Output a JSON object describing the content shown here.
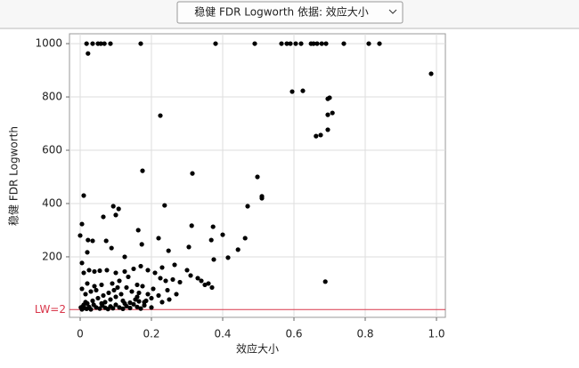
{
  "chart_data": {
    "type": "scatter",
    "title": "稳健 FDR Logworth 依据: 效应大小",
    "x_label": "效应大小",
    "y_label": "稳健 FDR Logworth",
    "color": "#000000",
    "grid": true,
    "xlim": [
      -0.03,
      1.025
    ],
    "ylim": [
      -27,
      1037
    ],
    "xticks": [
      0,
      0.2,
      0.4,
      0.6,
      0.8,
      {
        "value": 1,
        "label": "1.0"
      }
    ],
    "yticks": [
      200,
      400,
      600,
      800,
      1000
    ],
    "ref_lines": [
      {
        "value": 2,
        "label": "LW=2",
        "color": "#d9364a"
      }
    ],
    "x": [
      0.018,
      0.035,
      0.05,
      0.058,
      0.068,
      0.085,
      0.17,
      0.38,
      0.49,
      0.565,
      0.58,
      0.59,
      0.605,
      0.62,
      0.648,
      0.655,
      0.665,
      0.678,
      0.69,
      0.74,
      0.81,
      0.84,
      0.022,
      0.985,
      0.595,
      0.625,
      0.695,
      0.7,
      0.708,
      0.695,
      0.225,
      0.695,
      0.675,
      0.662,
      0.175,
      0.315,
      0.4975,
      0.51,
      0.51,
      0.01,
      0.47,
      0.237,
      0.093,
      0.108,
      0.1,
      0.065,
      0.005,
      0.373,
      0.313,
      0.163,
      0.4,
      0,
      0.22,
      0.368,
      0.463,
      0.022,
      0.035,
      0.073,
      0.173,
      0.443,
      0.305,
      0.088,
      0.02,
      0.248,
      0.415,
      0.125,
      0.375,
      0.005,
      0.688,
      0.01,
      0.025,
      0.04,
      0.055,
      0.075,
      0.1,
      0.125,
      0.15,
      0.17,
      0.19,
      0.21,
      0.225,
      0.24,
      0.26,
      0.28,
      0.23,
      0.265,
      0.135,
      0.11,
      0.09,
      0.06,
      0.04,
      0.02,
      0.005,
      0.015,
      0.03,
      0.045,
      0.065,
      0.08,
      0.095,
      0.115,
      0.13,
      0.145,
      0.16,
      0.175,
      0.19,
      0.205,
      0.22,
      0.245,
      0.27,
      0.2,
      0.18,
      0.155,
      0.12,
      0.1,
      0.085,
      0.07,
      0.05,
      0.035,
      0.02,
      0.008,
      0.012,
      0.018,
      0.025,
      0.03,
      0.038,
      0.045,
      0.055,
      0.062,
      0.07,
      0.078,
      0.085,
      0.092,
      0.1,
      0.11,
      0.12,
      0.13,
      0.14,
      0.15,
      0.16,
      0.17,
      0.18,
      0.005,
      0.002,
      0.01,
      0.015,
      0.06,
      0.2,
      0.23,
      0.25,
      0.33,
      0.35,
      0.34,
      0.36,
      0.37,
      0.31,
      0.3,
      0.185,
      0.14,
      0.165,
      0.125,
      0.16,
      0.165,
      0.105
    ],
    "values": [
      1000,
      1000,
      1000,
      1000,
      1000,
      1000,
      1000,
      1000,
      1000,
      1000,
      1000,
      1000,
      1000,
      1000,
      1000,
      1000,
      1000,
      1000,
      1000,
      1000,
      1000,
      1000,
      963,
      887,
      820,
      823,
      793,
      797,
      740,
      733,
      730,
      677,
      657,
      653,
      523,
      513,
      500,
      427,
      420,
      430,
      390,
      393,
      390,
      380,
      357,
      350,
      323,
      313,
      317,
      300,
      283,
      280,
      270,
      263,
      270,
      263,
      260,
      260,
      247,
      227,
      237,
      233,
      217,
      223,
      197,
      200,
      190,
      177,
      107,
      140,
      150,
      145,
      148,
      150,
      140,
      145,
      155,
      165,
      150,
      140,
      120,
      110,
      115,
      105,
      160,
      170,
      125,
      110,
      100,
      95,
      90,
      100,
      80,
      60,
      70,
      75,
      55,
      65,
      75,
      60,
      85,
      70,
      50,
      90,
      60,
      80,
      55,
      75,
      60,
      45,
      30,
      40,
      35,
      50,
      40,
      30,
      45,
      35,
      25,
      15,
      8,
      5,
      12,
      3,
      20,
      10,
      6,
      18,
      9,
      4,
      14,
      7,
      20,
      10,
      5,
      15,
      8,
      22,
      12,
      6,
      18,
      3,
      10,
      20,
      30,
      25,
      10,
      30,
      40,
      120,
      95,
      110,
      100,
      85,
      130,
      150,
      35,
      28,
      33,
      25,
      95,
      65,
      85
    ]
  }
}
